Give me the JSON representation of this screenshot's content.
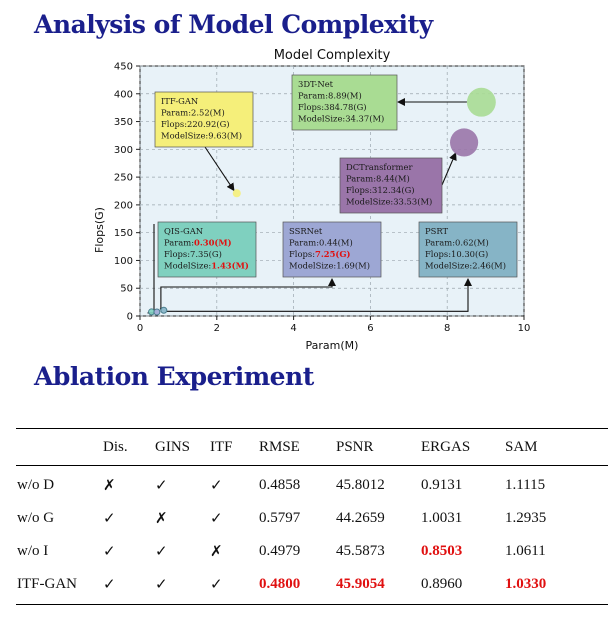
{
  "titles": {
    "complexity": "Analysis of Model Complexity",
    "ablation": "Ablation Experiment"
  },
  "colors": {
    "heading": "#1a1f8c",
    "highlight": "#e01010",
    "plot_bg": "#e8f2f8"
  },
  "chart_data": {
    "type": "scatter",
    "title": "Model Complexity",
    "xlabel": "Param(M)",
    "ylabel": "Flops(G)",
    "xlim": [
      0,
      10
    ],
    "ylim": [
      0,
      450
    ],
    "xticks": [
      0,
      2,
      4,
      6,
      8,
      10
    ],
    "yticks": [
      0,
      50,
      100,
      150,
      200,
      250,
      300,
      350,
      400,
      450
    ],
    "grid": true,
    "points": [
      {
        "name": "ITF-GAN",
        "param": 2.52,
        "flops": 220.92,
        "model_size": 9.63,
        "color": "#f5ef7a",
        "lines": [
          "ITF-GAN",
          "Param:2.52(M)",
          "Flops:220.92(G)",
          "ModelSize:9.63(M)"
        ],
        "red": []
      },
      {
        "name": "3DT-Net",
        "param": 8.89,
        "flops": 384.78,
        "model_size": 34.37,
        "color": "#a9dc93",
        "lines": [
          "3DT-Net",
          "Param:8.89(M)",
          "Flops:384.78(G)",
          "ModelSize:34.37(M)"
        ],
        "red": []
      },
      {
        "name": "DCTransformer",
        "param": 8.44,
        "flops": 312.34,
        "model_size": 33.53,
        "color": "#9a75a9",
        "lines": [
          "DCTransformer",
          "Param:8.44(M)",
          "Flops:312.34(G)",
          "ModelSize:33.53(M)"
        ],
        "red": []
      },
      {
        "name": "QIS-GAN",
        "param": 0.3,
        "flops": 7.35,
        "model_size": 1.43,
        "color": "#7fd0bf",
        "lines": [
          "QIS-GAN",
          "Param:0.30(M)",
          "Flops:7.35(G)",
          "ModelSize:1.43(M)"
        ],
        "red": [
          1,
          3
        ]
      },
      {
        "name": "SSRNet",
        "param": 0.44,
        "flops": 7.25,
        "model_size": 1.69,
        "color": "#9da7d4",
        "lines": [
          "SSRNet",
          "Param:0.44(M)",
          "Flops:7.25(G)",
          "ModelSize:1.69(M)"
        ],
        "red": [
          2
        ]
      },
      {
        "name": "PSRT",
        "param": 0.62,
        "flops": 10.3,
        "model_size": 2.46,
        "color": "#86b4c6",
        "lines": [
          "PSRT",
          "Param:0.62(M)",
          "Flops:10.30(G)",
          "ModelSize:2.46(M)"
        ],
        "red": []
      }
    ]
  },
  "ablation": {
    "headers": [
      "",
      "Dis.",
      "GINS",
      "ITF",
      "RMSE",
      "PSNR",
      "ERGAS",
      "SAM"
    ],
    "rows": [
      {
        "cells": [
          "w/o D",
          "✗",
          "✓",
          "✓",
          "0.4858",
          "45.8012",
          "0.9131",
          "1.1115"
        ],
        "red": []
      },
      {
        "cells": [
          "w/o G",
          "✓",
          "✗",
          "✓",
          "0.5797",
          "44.2659",
          "1.0031",
          "1.2935"
        ],
        "red": []
      },
      {
        "cells": [
          "w/o I",
          "✓",
          "✓",
          "✗",
          "0.4979",
          "45.5873",
          "0.8503",
          "1.0611"
        ],
        "red": [
          6
        ]
      },
      {
        "cells": [
          "ITF-GAN",
          "✓",
          "✓",
          "✓",
          "0.4800",
          "45.9054",
          "0.8960",
          "1.0330"
        ],
        "red": [
          4,
          5,
          7
        ]
      }
    ]
  }
}
